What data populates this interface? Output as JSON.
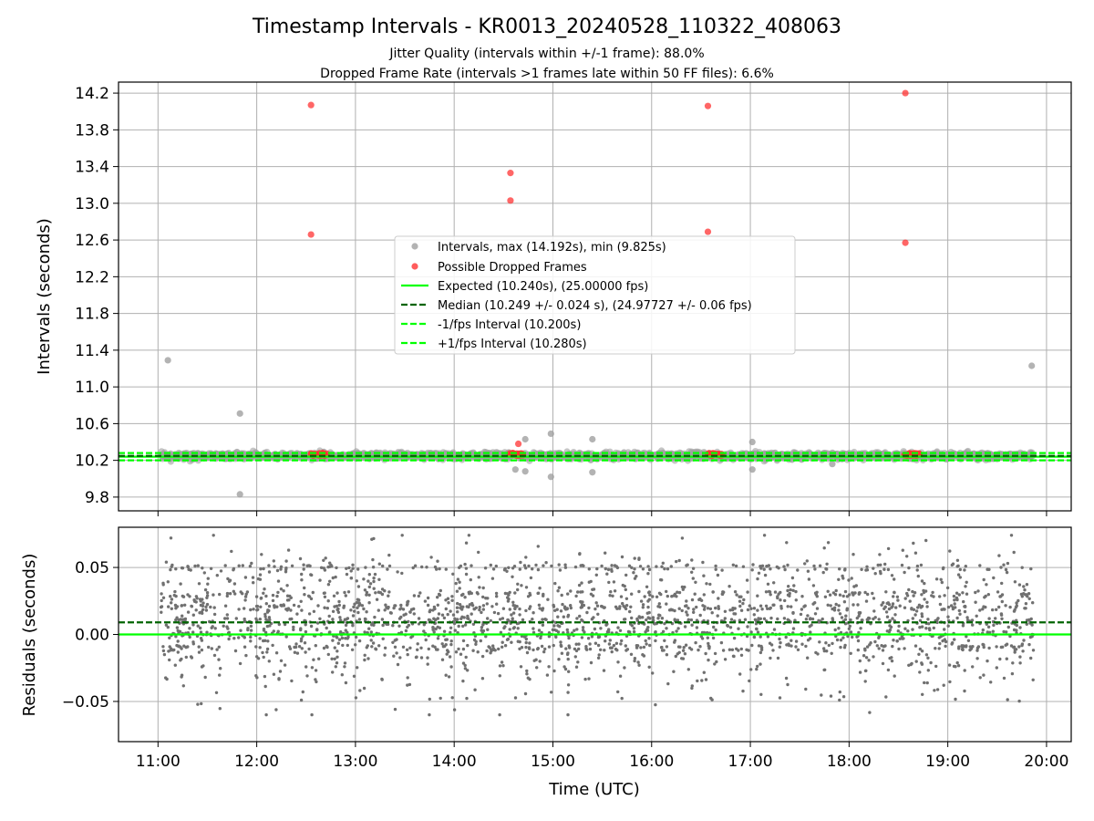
{
  "figure": {
    "title": "Timestamp Intervals - KR0013_20240528_110322_408063",
    "subtitle_line1": "Jitter Quality (intervals within +/-1 frame): 88.0%",
    "subtitle_line2": "Dropped Frame Rate (intervals >1 frames late within 50 FF files): 6.6%"
  },
  "chart_data": [
    {
      "type": "scatter",
      "ylabel": "Intervals (seconds)",
      "xlabel": "",
      "grid": true,
      "legend_position": "center",
      "xlim_hours_utc": [
        10.6,
        20.25
      ],
      "ylim": [
        9.65,
        14.32
      ],
      "y_ticks": [
        "9.8",
        "10.2",
        "10.6",
        "11.0",
        "11.4",
        "11.8",
        "12.2",
        "12.6",
        "13.0",
        "13.4",
        "13.8",
        "14.2"
      ],
      "y_tick_values": [
        9.8,
        10.2,
        10.6,
        11.0,
        11.4,
        11.8,
        12.2,
        12.6,
        13.0,
        13.4,
        13.8,
        14.2
      ],
      "series": [
        {
          "name": "Intervals, max (14.192s), min (9.825s)",
          "kind": "points",
          "color": "#a0a0a0",
          "baseline": {
            "x_range_hours": [
              11.03,
              19.87
            ],
            "y_center": 10.249,
            "y_spread": 0.03
          },
          "outliers": [
            [
              11.1,
              11.29
            ],
            [
              11.83,
              10.71
            ],
            [
              11.83,
              9.83
            ],
            [
              14.72,
              10.43
            ],
            [
              14.72,
              10.08
            ],
            [
              14.98,
              10.49
            ],
            [
              14.98,
              10.02
            ],
            [
              15.4,
              10.43
            ],
            [
              15.4,
              10.07
            ],
            [
              17.02,
              10.4
            ],
            [
              17.02,
              10.1
            ],
            [
              14.62,
              10.1
            ],
            [
              17.83,
              10.16
            ],
            [
              19.85,
              11.23
            ]
          ]
        },
        {
          "name": "Possible Dropped Frames",
          "kind": "points",
          "color": "#ff3333",
          "points": [
            [
              12.55,
              14.07
            ],
            [
              12.55,
              12.66
            ],
            [
              14.57,
              13.33
            ],
            [
              14.57,
              13.03
            ],
            [
              16.57,
              14.06
            ],
            [
              16.57,
              12.69
            ],
            [
              18.57,
              14.2
            ],
            [
              18.57,
              12.57
            ],
            [
              14.65,
              10.38
            ]
          ],
          "clusters_near_median": [
            [
              12.55,
              12.72
            ],
            [
              14.55,
              14.7
            ],
            [
              16.55,
              16.72
            ],
            [
              18.55,
              18.72
            ]
          ]
        },
        {
          "name": "Expected (10.240s), (25.00000 fps)",
          "kind": "hline",
          "y": 10.24,
          "color": "#00ff00",
          "style": "solid"
        },
        {
          "name": "Median (10.249 +/- 0.024 s), (24.97727 +/- 0.06 fps)",
          "kind": "hline",
          "y": 10.249,
          "color": "#006400",
          "style": "dashed"
        },
        {
          "name": "-1/fps Interval (10.200s)",
          "kind": "hline",
          "y": 10.2,
          "color": "#00ff00",
          "style": "dashed"
        },
        {
          "name": "+1/fps Interval (10.280s)",
          "kind": "hline",
          "y": 10.28,
          "color": "#00ff00",
          "style": "dashed"
        }
      ]
    },
    {
      "type": "scatter",
      "ylabel": "Residuals (seconds)",
      "xlabel": "Time (UTC)",
      "grid": true,
      "xlim_hours_utc": [
        10.6,
        20.25
      ],
      "ylim": [
        -0.08,
        0.08
      ],
      "x_ticks": [
        "11:00",
        "12:00",
        "13:00",
        "14:00",
        "15:00",
        "16:00",
        "17:00",
        "18:00",
        "19:00",
        "20:00"
      ],
      "x_tick_values": [
        11,
        12,
        13,
        14,
        15,
        16,
        17,
        18,
        19,
        20
      ],
      "y_ticks": [
        "−0.05",
        "0.00",
        "0.05"
      ],
      "y_tick_values": [
        -0.05,
        0.0,
        0.05
      ],
      "series": [
        {
          "name": "",
          "kind": "points",
          "color": "#707070",
          "residual_range": [
            -0.06,
            0.074
          ],
          "x_range_hours": [
            11.03,
            19.87
          ]
        },
        {
          "name": "",
          "kind": "hline",
          "y": 0.0,
          "color": "#00ff00",
          "style": "solid"
        },
        {
          "name": "",
          "kind": "hline",
          "y": 0.009,
          "color": "#006400",
          "style": "dashed"
        }
      ]
    }
  ]
}
